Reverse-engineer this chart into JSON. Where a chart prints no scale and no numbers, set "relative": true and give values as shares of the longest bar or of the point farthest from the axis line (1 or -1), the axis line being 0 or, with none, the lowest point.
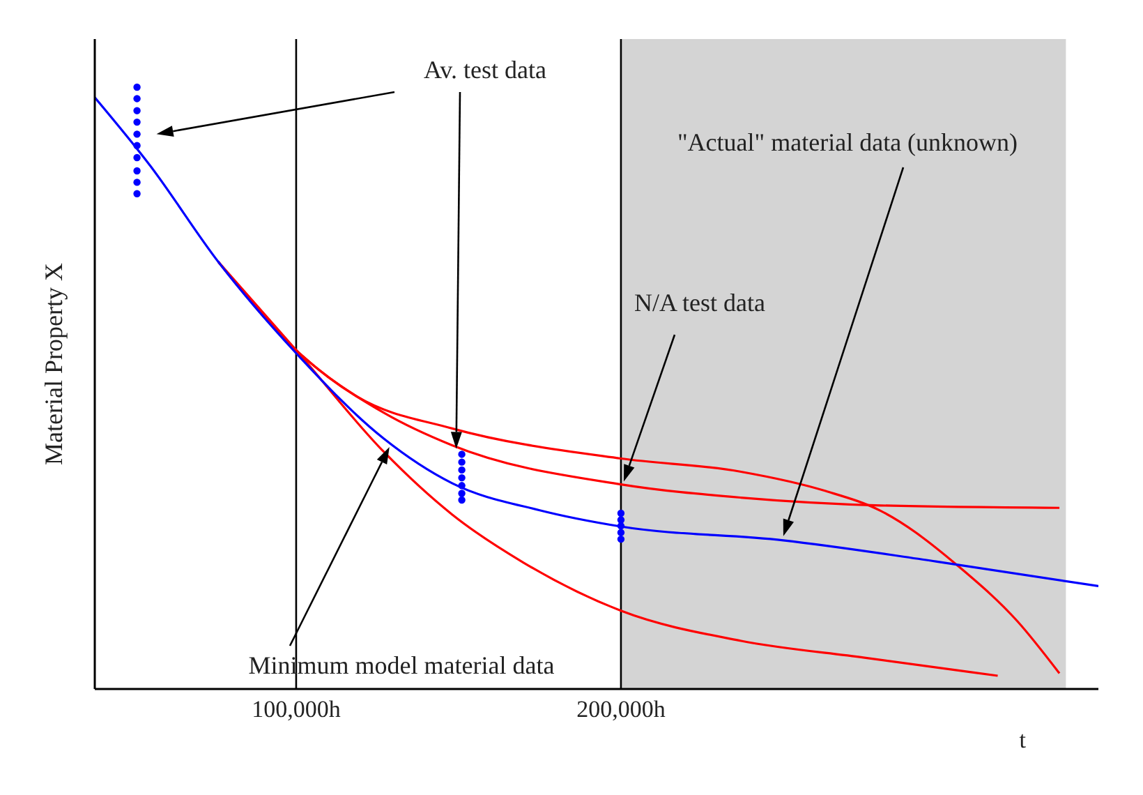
{
  "chart_data": {
    "type": "line",
    "relative": true,
    "xlabel": "t",
    "ylabel": "Material Property X",
    "xlim": [
      38000,
      347000
    ],
    "xticks": [
      {
        "value": 100000,
        "label": "100,000h"
      },
      {
        "value": 200000,
        "label": "200,000h"
      }
    ],
    "ref_lines": [
      {
        "axis": "x",
        "value": 100000,
        "color": "#000000"
      },
      {
        "axis": "x",
        "value": 200000,
        "color": "#000000"
      }
    ],
    "bands": [
      {
        "axis": "x",
        "from": 200000,
        "to": 337000,
        "color": "#d4d4d4"
      }
    ],
    "annotations": [
      "Av. test data",
      "\"Actual\" material data (unknown)",
      "N/A test data",
      "Minimum model material data"
    ],
    "series": [
      {
        "color": "#ff0000",
        "x": [
          76000,
          100000,
          119000,
          148000,
          200000,
          237000,
          263000,
          280000,
          305000,
          322000,
          335000
        ],
        "values": [
          0.71,
          0.563,
          0.485,
          0.433,
          0.383,
          0.361,
          0.329,
          0.296,
          0.199,
          0.113,
          0.026
        ]
      },
      {
        "color": "#ff0000",
        "x": [
          76000,
          100000,
          127000,
          148000,
          200000,
          237000,
          280000,
          335000
        ],
        "values": [
          0.71,
          0.563,
          0.459,
          0.405,
          0.34,
          0.318,
          0.305,
          0.301
        ]
      },
      {
        "color": "#ff0000",
        "x": [
          76000,
          100000,
          127000,
          148000,
          170000,
          200000,
          237000,
          275000,
          316000
        ],
        "values": [
          0.71,
          0.563,
          0.394,
          0.29,
          0.21,
          0.13,
          0.08,
          0.052,
          0.022
        ]
      },
      {
        "color": "#0000ff",
        "x": [
          38000,
          55000,
          76000,
          100000,
          127000,
          148000,
          175000,
          200000,
          250000,
          297000,
          347000
        ],
        "values": [
          0.983,
          0.87,
          0.71,
          0.558,
          0.416,
          0.342,
          0.297,
          0.27,
          0.247,
          0.212,
          0.171
        ]
      },
      {
        "type": "scatter",
        "color": "#0000ff",
        "marker": "circle",
        "x": [
          51000,
          51000,
          51000,
          51000,
          51000,
          51000,
          51000,
          51000,
          51000,
          51000
        ],
        "values": [
          1.0,
          0.981,
          0.961,
          0.942,
          0.922,
          0.903,
          0.883,
          0.861,
          0.842,
          0.823
        ]
      },
      {
        "type": "scatter",
        "color": "#0000ff",
        "marker": "circle",
        "x": [
          151000,
          151000,
          151000,
          151000,
          151000,
          151000,
          151000
        ],
        "values": [
          0.39,
          0.377,
          0.364,
          0.351,
          0.338,
          0.325,
          0.314
        ]
      },
      {
        "type": "scatter",
        "color": "#0000ff",
        "marker": "circle",
        "x": [
          200000,
          200000,
          200000,
          200000,
          200000
        ],
        "values": [
          0.292,
          0.281,
          0.271,
          0.26,
          0.249
        ]
      }
    ]
  }
}
